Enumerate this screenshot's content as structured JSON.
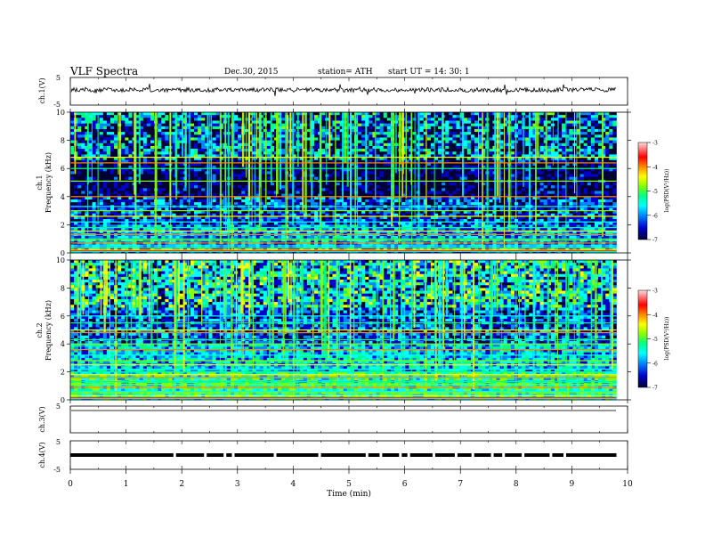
{
  "header": {
    "title": "VLF  Spectra",
    "date": "Dec.30, 2015",
    "station": "station= ATH",
    "start": "start  UT  =    14: 30: 1"
  },
  "chart_data": [
    {
      "type": "line",
      "panel": "ch1-waveform",
      "ylabel": "ch.1(V)",
      "ylim": [
        -5,
        5
      ],
      "yticks": [
        "5",
        "-5"
      ],
      "xlim": [
        0,
        10
      ],
      "baseline_v": 0.5,
      "noise_amplitude_v": 0.8,
      "color": "#000000"
    },
    {
      "type": "heatmap",
      "panel": "ch1-spectrogram",
      "ylabel": "Frequency (kHz)",
      "channel_label": "ch.1",
      "ylim": [
        0,
        10
      ],
      "yticks": [
        "0",
        "2",
        "4",
        "6",
        "8",
        "10"
      ],
      "xlim": [
        0,
        9.8
      ],
      "bands_khz": [
        0.1,
        0.2,
        0.35,
        0.5,
        0.7,
        0.9,
        1.0,
        1.3,
        1.55,
        1.8,
        2.2,
        2.6,
        3.0,
        3.3,
        4.0,
        5.1,
        6.0,
        6.4,
        6.8
      ],
      "base_level": -6.8,
      "colorbar": {
        "label": "log(PSD(V²/Hz))",
        "ticks": [
          "-3",
          "-4",
          "-5",
          "-6",
          "-7"
        ],
        "range": [
          -7,
          -3
        ]
      }
    },
    {
      "type": "heatmap",
      "panel": "ch2-spectrogram",
      "ylabel": "Frequency (kHz)",
      "channel_label": "ch.2",
      "ylim": [
        0,
        10
      ],
      "yticks": [
        "0",
        "2",
        "4",
        "6",
        "8",
        "10"
      ],
      "xlim": [
        0,
        9.8
      ],
      "bands_khz": [
        0.1,
        0.3,
        0.5,
        0.6,
        0.9,
        1.1,
        1.3,
        1.6,
        1.8,
        2.0,
        2.2,
        2.5,
        2.8,
        3.2,
        3.6,
        4.0,
        4.3,
        4.8,
        5.0,
        5.5,
        6.0
      ],
      "base_level": -6.2,
      "colorbar": {
        "label": "log(PSD(V²/Hz))",
        "ticks": [
          "-3",
          "-4",
          "-5",
          "-6",
          "-7"
        ],
        "range": [
          -7,
          -3
        ]
      }
    },
    {
      "type": "line",
      "panel": "ch3-waveform",
      "ylabel": "ch.3(V)",
      "ylim": [
        -5,
        5
      ],
      "yticks": [
        "5",
        ""
      ],
      "xlim": [
        0,
        9.8
      ],
      "baseline_v": 5.0,
      "color": "#999999"
    },
    {
      "type": "line",
      "panel": "ch4-waveform",
      "ylabel": "ch.4(V)",
      "ylim": [
        -5,
        5
      ],
      "yticks": [
        "5",
        "-5"
      ],
      "xlim": [
        0,
        9.8
      ],
      "baseline_v": 0.0,
      "color": "#000000",
      "gaps_min": [
        1.85,
        2.4,
        2.75,
        2.9,
        3.65,
        4.45,
        5.3,
        5.55,
        5.9,
        6.05,
        6.5,
        6.9,
        7.2,
        7.55,
        7.75,
        8.1,
        8.6,
        8.85
      ]
    },
    {
      "type": "axis",
      "panel": "time-axis",
      "xlabel": "Time  (min)",
      "xlim": [
        0,
        10
      ],
      "xticks": [
        "0",
        "1",
        "2",
        "3",
        "4",
        "5",
        "6",
        "7",
        "8",
        "9",
        "10"
      ]
    }
  ],
  "colors": {
    "colormap": [
      "#000033",
      "#0000cc",
      "#0088ff",
      "#00ffff",
      "#00ff88",
      "#88ff00",
      "#ffff00",
      "#ff8800",
      "#ff0000",
      "#ffcccc"
    ]
  }
}
